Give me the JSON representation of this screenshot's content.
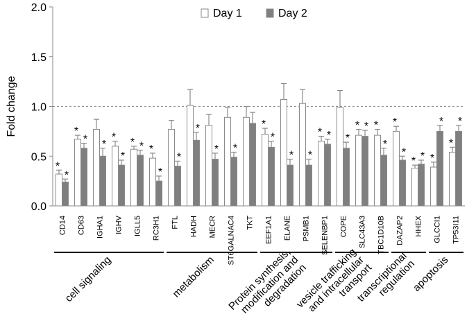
{
  "chart_data": {
    "type": "bar",
    "ylabel": "Fold change",
    "ylim": [
      0,
      2.0
    ],
    "yticks": [
      "0.0",
      "0.5",
      "1.0",
      "1.5",
      "2.0"
    ],
    "reference_line": 1.0,
    "legend_position": "top-center",
    "categories": [
      "CD14",
      "CD63",
      "IGHA1",
      "IGHV",
      "IGLL5",
      "RC3H1",
      "FTL",
      "HADH",
      "MECR",
      "ST6GALNAC4",
      "TKT",
      "EEF1A1",
      "ELANE",
      "PSMB1",
      "SELENBP1",
      "COPE",
      "SLC43A3",
      "TBC1D10B",
      "DAZAP2",
      "HHEX",
      "GLCCI1",
      "TP53I11"
    ],
    "series": [
      {
        "name": "Day 1",
        "color": "#ffffff",
        "values": [
          0.32,
          0.67,
          0.77,
          0.6,
          0.57,
          0.48,
          0.77,
          1.01,
          0.81,
          0.89,
          0.89,
          0.72,
          1.07,
          1.03,
          0.65,
          0.99,
          0.71,
          0.71,
          0.75,
          0.38,
          0.39,
          0.54
        ],
        "errors": [
          0.04,
          0.04,
          0.1,
          0.05,
          0.03,
          0.05,
          0.09,
          0.16,
          0.11,
          0.1,
          0.11,
          0.06,
          0.16,
          0.14,
          0.05,
          0.17,
          0.06,
          0.06,
          0.05,
          0.03,
          0.05,
          0.05
        ],
        "significant": [
          true,
          true,
          false,
          true,
          true,
          true,
          false,
          false,
          false,
          false,
          false,
          true,
          false,
          false,
          true,
          false,
          true,
          true,
          true,
          true,
          true,
          true
        ]
      },
      {
        "name": "Day 2",
        "color": "#7f7f7f",
        "values": [
          0.24,
          0.58,
          0.5,
          0.41,
          0.51,
          0.25,
          0.4,
          0.66,
          0.47,
          0.49,
          0.83,
          0.59,
          0.41,
          0.41,
          0.62,
          0.58,
          0.7,
          0.51,
          0.46,
          0.42,
          0.75,
          0.75
        ],
        "errors": [
          0.03,
          0.05,
          0.08,
          0.05,
          0.05,
          0.05,
          0.05,
          0.08,
          0.06,
          0.05,
          0.11,
          0.06,
          0.06,
          0.06,
          0.05,
          0.06,
          0.06,
          0.07,
          0.04,
          0.04,
          0.06,
          0.06
        ],
        "significant": [
          true,
          true,
          true,
          true,
          true,
          true,
          true,
          true,
          true,
          true,
          false,
          true,
          true,
          true,
          true,
          true,
          true,
          true,
          true,
          true,
          true,
          true
        ]
      }
    ],
    "significance_marker": "*",
    "groups": [
      {
        "label_lines": [
          "cell signaling"
        ],
        "from": 0,
        "to": 5
      },
      {
        "label_lines": [
          "metabolism"
        ],
        "from": 6,
        "to": 10
      },
      {
        "label_lines": [
          "Protein synthesis,",
          "modification and",
          "degradation"
        ],
        "from": 11,
        "to": 14
      },
      {
        "label_lines": [
          "vesicle trafficking",
          "and intracellular",
          "transport"
        ],
        "from": 15,
        "to": 17
      },
      {
        "label_lines": [
          "transcriptional",
          "regulation"
        ],
        "from": 18,
        "to": 19
      },
      {
        "label_lines": [
          "apoptosis"
        ],
        "from": 20,
        "to": 21
      }
    ]
  }
}
